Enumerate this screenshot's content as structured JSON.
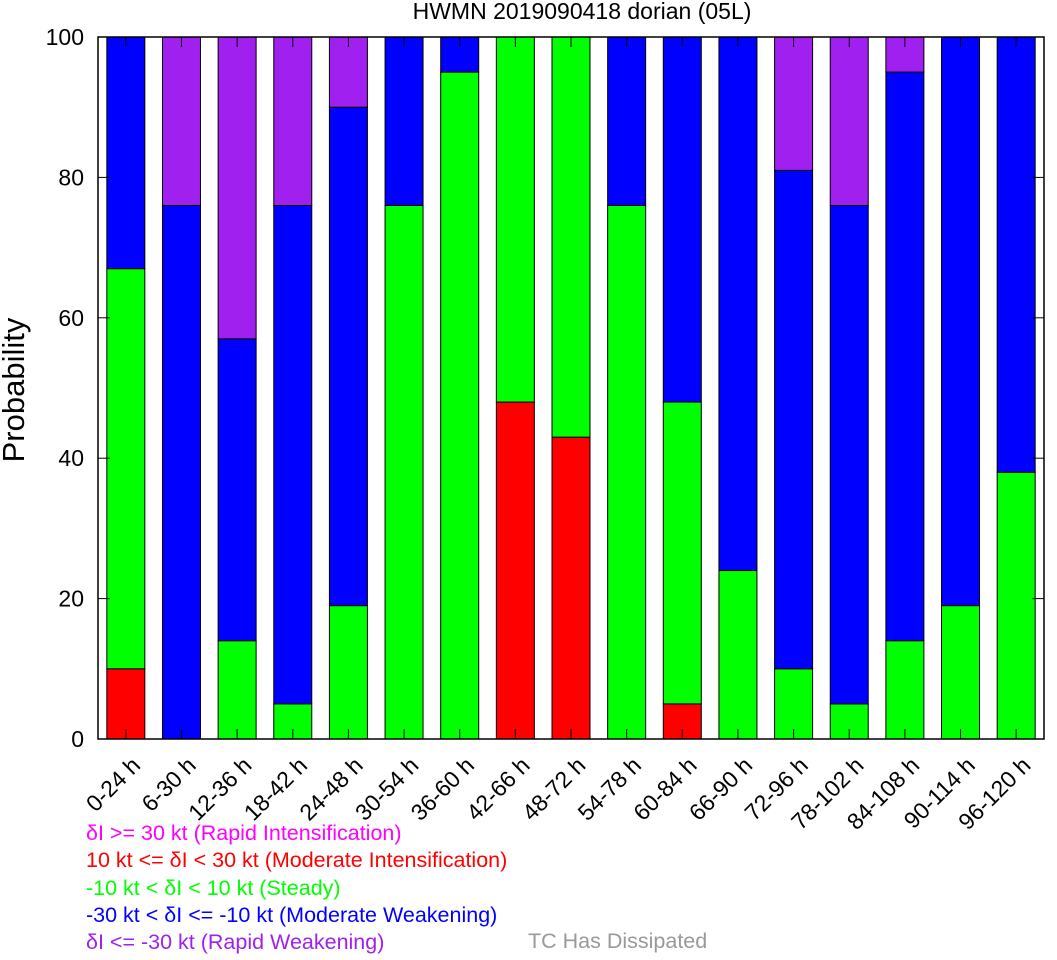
{
  "chart_data": {
    "type": "bar",
    "stacked": true,
    "title": "HWMN 2019090418 dorian (05L)",
    "ylabel": "Probability",
    "ylim": [
      0,
      100
    ],
    "yticks": [
      "0",
      "20",
      "40",
      "60",
      "80",
      "100"
    ],
    "categories": [
      "0-24 h",
      "6-30 h",
      "12-36 h",
      "18-42 h",
      "24-48 h",
      "30-54 h",
      "36-60 h",
      "42-66 h",
      "48-72 h",
      "54-78 h",
      "60-84 h",
      "66-90 h",
      "72-96 h",
      "78-102 h",
      "84-108 h",
      "90-114 h",
      "96-120 h"
    ],
    "series": [
      {
        "key": "moderate_intensification",
        "color": "#ff0000",
        "values": [
          10,
          0,
          0,
          0,
          0,
          0,
          0,
          48,
          43,
          0,
          5,
          0,
          0,
          0,
          0,
          0,
          0
        ]
      },
      {
        "key": "steady",
        "color": "#00ff00",
        "values": [
          57,
          0,
          14,
          5,
          19,
          76,
          95,
          52,
          57,
          76,
          43,
          24,
          10,
          5,
          14,
          19,
          38
        ]
      },
      {
        "key": "moderate_weakening",
        "color": "#0000ff",
        "values": [
          33,
          76,
          43,
          71,
          71,
          24,
          5,
          0,
          0,
          24,
          52,
          76,
          71,
          71,
          81,
          81,
          62
        ]
      },
      {
        "key": "rapid_weakening",
        "color": "#a020f0",
        "values": [
          0,
          24,
          43,
          24,
          10,
          0,
          0,
          0,
          0,
          0,
          0,
          0,
          19,
          24,
          5,
          0,
          0
        ]
      }
    ],
    "legend": [
      {
        "text": "δI >= 30 kt (Rapid Intensification)",
        "color": "#ff00ff"
      },
      {
        "text": "10 kt <= δI < 30 kt (Moderate Intensification)",
        "color": "#ff0000"
      },
      {
        "text": "-10 kt < δI < 10 kt (Steady)",
        "color": "#00ff00"
      },
      {
        "text": "-30 kt < δI <= -10 kt (Moderate Weakening)",
        "color": "#0000ff"
      },
      {
        "text": "δI <= -30 kt (Rapid Weakening)",
        "color": "#a020f0"
      }
    ],
    "dissipated_label": {
      "text": "TC Has Dissipated",
      "color": "#999999"
    }
  }
}
